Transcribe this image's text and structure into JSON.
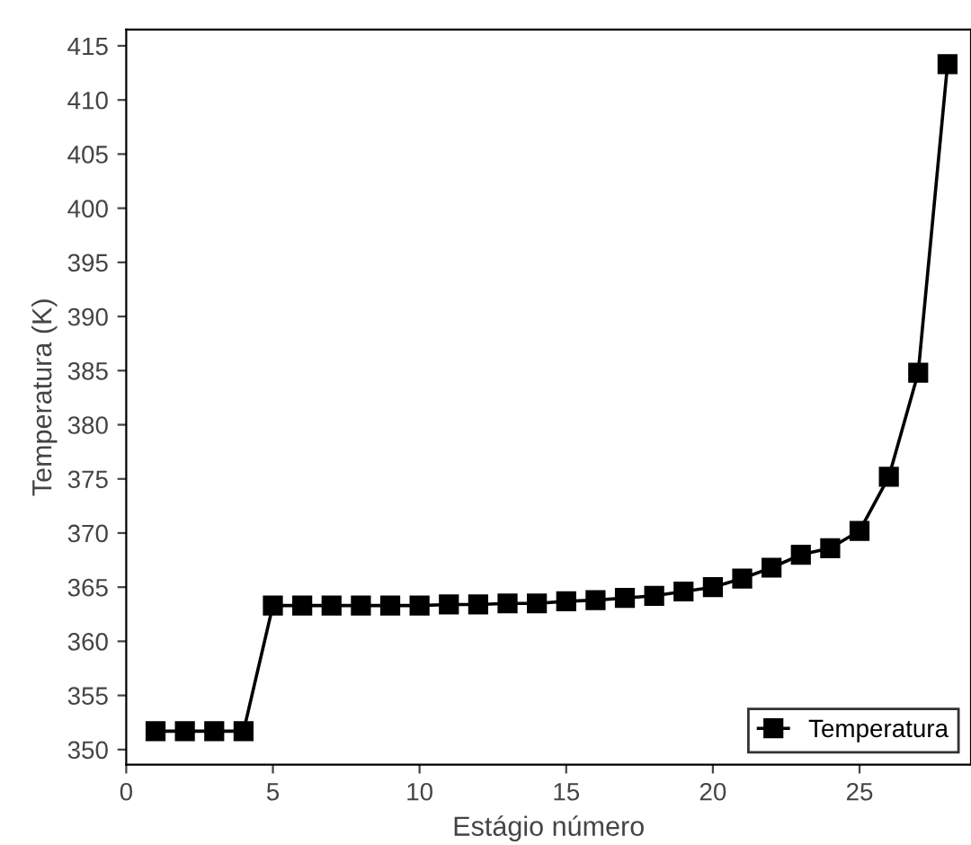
{
  "chart_data": {
    "type": "line",
    "xlabel": "Estágio número",
    "ylabel": "Temperatura (K)",
    "x": [
      1,
      2,
      3,
      4,
      5,
      6,
      7,
      8,
      9,
      10,
      11,
      12,
      13,
      14,
      15,
      16,
      17,
      18,
      19,
      20,
      21,
      22,
      23,
      24,
      25,
      26,
      27,
      28
    ],
    "series": [
      {
        "name": "Temperatura",
        "color": "#000000",
        "values": [
          351.7,
          351.7,
          351.7,
          351.7,
          363.3,
          363.3,
          363.3,
          363.3,
          363.3,
          363.3,
          363.4,
          363.4,
          363.5,
          363.5,
          363.7,
          363.8,
          364.0,
          364.2,
          364.6,
          365.0,
          365.8,
          366.8,
          368.0,
          368.6,
          370.2,
          375.2,
          384.8,
          413.3
        ]
      }
    ],
    "xlim": [
      0,
      28.8
    ],
    "ylim": [
      348.6,
      416.5
    ],
    "xticks": [
      0,
      5,
      10,
      15,
      20,
      25
    ],
    "yticks": [
      350,
      355,
      360,
      365,
      370,
      375,
      380,
      385,
      390,
      395,
      400,
      405,
      410,
      415
    ],
    "marker": "square",
    "line_style": "solid",
    "legend": "bottom right",
    "grid": false
  }
}
